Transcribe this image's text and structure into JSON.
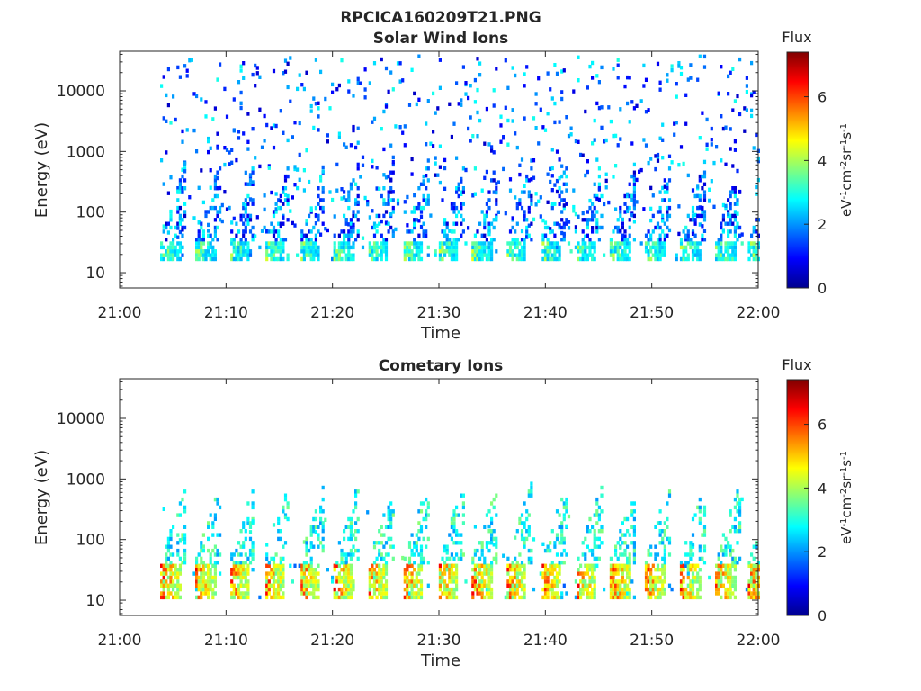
{
  "figure": {
    "file_title": "RPCICA160209T21.PNG"
  },
  "chart_data": [
    {
      "type": "heatmap",
      "title": "Solar Wind Ions",
      "xlabel": "Time",
      "ylabel": "Energy (eV)",
      "x_ticks": [
        "21:00",
        "21:10",
        "21:20",
        "21:30",
        "21:40",
        "21:50",
        "22:00"
      ],
      "x_range_minutes": [
        0,
        60
      ],
      "y_scale": "log",
      "y_ticks": [
        "10",
        "100",
        "1000",
        "10000"
      ],
      "y_tick_values": [
        10,
        100,
        1000,
        10000
      ],
      "y_range": [
        5.6,
        45000
      ],
      "colorbar": {
        "title": "Flux",
        "label": "eV-1cm-2sr-1s-1",
        "ticks": [
          "0",
          "2",
          "4",
          "6"
        ],
        "tick_values": [
          0,
          2,
          4,
          6
        ],
        "range": [
          0,
          7.4
        ]
      },
      "data_start_minute": 3.8,
      "data_end_minute": 60,
      "pulse_starts_minutes": [
        3.8,
        7.0,
        10.2,
        13.5,
        16.8,
        20.0,
        23.2,
        26.5,
        29.8,
        33.0,
        36.2,
        39.5,
        42.8,
        46.0,
        49.2,
        52.5,
        55.8,
        59.0
      ],
      "low_band_energy_eV": [
        18,
        38
      ],
      "low_band_flux": [
        2.2,
        4.6
      ],
      "scatter_energy_eV": [
        40,
        40000
      ],
      "scatter_flux": [
        0.5,
        3.0
      ],
      "grid": false
    },
    {
      "type": "heatmap",
      "title": "Cometary Ions",
      "xlabel": "Time",
      "ylabel": "Energy (eV)",
      "x_ticks": [
        "21:00",
        "21:10",
        "21:20",
        "21:30",
        "21:40",
        "21:50",
        "22:00"
      ],
      "x_range_minutes": [
        0,
        60
      ],
      "y_scale": "log",
      "y_ticks": [
        "10",
        "100",
        "1000",
        "10000"
      ],
      "y_tick_values": [
        10,
        100,
        1000,
        10000
      ],
      "y_range": [
        5.6,
        45000
      ],
      "colorbar": {
        "title": "Flux",
        "label": "eV-1cm-2sr-1s-1",
        "ticks": [
          "0",
          "2",
          "4",
          "6"
        ],
        "tick_values": [
          0,
          2,
          4,
          6
        ],
        "range": [
          0,
          7.4
        ]
      },
      "data_start_minute": 3.8,
      "data_end_minute": 60,
      "pulse_starts_minutes": [
        3.8,
        7.0,
        10.2,
        13.5,
        16.8,
        20.0,
        23.2,
        26.5,
        29.8,
        33.0,
        36.2,
        39.5,
        42.8,
        46.0,
        49.2,
        52.5,
        55.8,
        59.0
      ],
      "low_band_energy_eV": [
        12,
        45
      ],
      "low_band_flux": [
        3.5,
        6.8
      ],
      "scatter_energy_eV": [
        50,
        500
      ],
      "scatter_flux": [
        2.0,
        3.8
      ],
      "grid": false
    }
  ]
}
